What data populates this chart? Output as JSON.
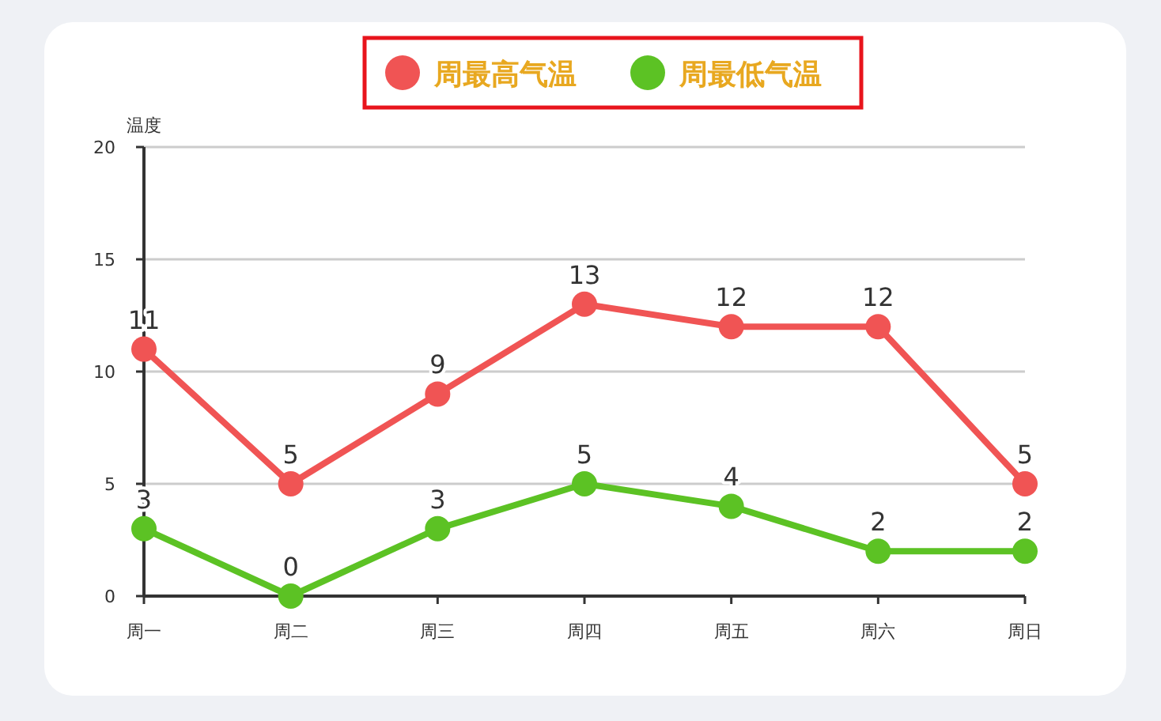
{
  "chart_data": {
    "type": "line",
    "ylabel": "温度",
    "categories": [
      "周一",
      "周二",
      "周三",
      "周四",
      "周五",
      "周六",
      "周日"
    ],
    "series": [
      {
        "name": "周最高气温",
        "color": "#f05454",
        "values": [
          11,
          5,
          9,
          13,
          12,
          12,
          5
        ]
      },
      {
        "name": "周最低气温",
        "color": "#5cc224",
        "values": [
          3,
          0,
          3,
          5,
          4,
          2,
          2
        ]
      }
    ],
    "data_labels": true,
    "ylim": [
      0,
      20
    ],
    "yticks": [
      0,
      5,
      10,
      15,
      20
    ],
    "grid": "y",
    "legend": "top",
    "marker": "circle",
    "line_style": "solid"
  }
}
